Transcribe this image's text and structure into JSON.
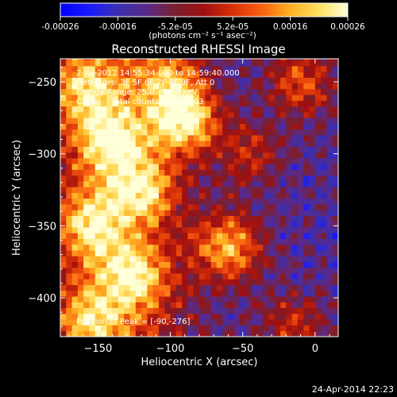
{
  "colorbar": {
    "ticks": [
      "-0.00026",
      "-0.00016",
      "-5.2e-05",
      "5.2e-05",
      "0.00016",
      "0.00026"
    ],
    "unit_label": "(photons cm⁻² s⁻¹ asec⁻²)",
    "colors": [
      "#0000ff",
      "#1a1aff",
      "#3a2fb0",
      "#5a2a8a",
      "#7a1f30",
      "#a01010",
      "#d83008",
      "#f86010",
      "#ffb020",
      "#ffe060",
      "#ffffd8"
    ]
  },
  "chart_data": {
    "type": "heatmap",
    "title": "Reconstructed RHESSI Image",
    "xlabel": "Heliocentric X (arcsec)",
    "ylabel": "Heliocentric Y (arcsec)",
    "xlim": [
      -176,
      16
    ],
    "ylim": [
      -427,
      -234
    ],
    "x_ticks": [
      -150,
      -100,
      -50,
      0
    ],
    "y_ticks": [
      -250,
      -300,
      -350,
      -400
    ],
    "x_tick_labels": [
      "−150",
      "−100",
      "−50",
      "0"
    ],
    "y_tick_labels": [
      "−250",
      "−300",
      "−350",
      "−400"
    ],
    "annotations": [
      "2-Jul-2012 14:55:34.000 to 14:59:40.000",
      "Detectors: 3F 5F 6F 7F 8F 9F, Att 0",
      "Energy Range: 25.0 - 50.0 keV",
      "Clean     Total counts: 4.93E+03"
    ],
    "peak_label": "Position of Peak = [-90,-276]",
    "peak_position": [
      -90,
      -276
    ],
    "sources": [
      {
        "x": -90,
        "y": -276,
        "amp": 1.0
      },
      {
        "x": -60,
        "y": -365,
        "amp": 0.85
      },
      {
        "x": -140,
        "y": -290,
        "amp": 0.75
      },
      {
        "x": -120,
        "y": -325,
        "amp": 0.7
      },
      {
        "x": -155,
        "y": -350,
        "amp": 0.65
      },
      {
        "x": -125,
        "y": -385,
        "amp": 0.7
      },
      {
        "x": -155,
        "y": -415,
        "amp": 0.55
      },
      {
        "x": -10,
        "y": -250,
        "amp": 0.6
      },
      {
        "x": -45,
        "y": -300,
        "amp": 0.4
      },
      {
        "x": -100,
        "y": -250,
        "amp": 0.55
      },
      {
        "x": -15,
        "y": -420,
        "amp": 0.45
      },
      {
        "x": -160,
        "y": -255,
        "amp": 0.6
      }
    ],
    "footer_text": "24-Apr-2014 22:23"
  }
}
